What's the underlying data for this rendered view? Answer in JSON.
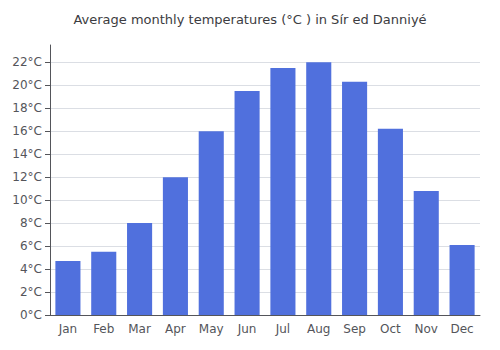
{
  "chart_data": {
    "type": "bar",
    "title": "Average monthly temperatures (°C ) in Sír ed Danniyé",
    "categories": [
      "Jan",
      "Feb",
      "Mar",
      "Apr",
      "May",
      "Jun",
      "Jul",
      "Aug",
      "Sep",
      "Oct",
      "Nov",
      "Dec"
    ],
    "values": [
      4.7,
      5.5,
      8.0,
      12.0,
      16.0,
      19.5,
      21.5,
      22.0,
      20.3,
      16.2,
      10.8,
      6.1
    ],
    "ylim": [
      0,
      23.5
    ],
    "yticks": [
      {
        "value": 0,
        "label": "0°C"
      },
      {
        "value": 2,
        "label": "2°C"
      },
      {
        "value": 4,
        "label": "4°C"
      },
      {
        "value": 6,
        "label": "6°C"
      },
      {
        "value": 8,
        "label": "8°C"
      },
      {
        "value": 10,
        "label": "10°C"
      },
      {
        "value": 12,
        "label": "12°C"
      },
      {
        "value": 14,
        "label": "14°C"
      },
      {
        "value": 16,
        "label": "16°C"
      },
      {
        "value": 18,
        "label": "18°C"
      },
      {
        "value": 20,
        "label": "20°C"
      },
      {
        "value": 22,
        "label": "22°C"
      }
    ],
    "grid": true
  }
}
